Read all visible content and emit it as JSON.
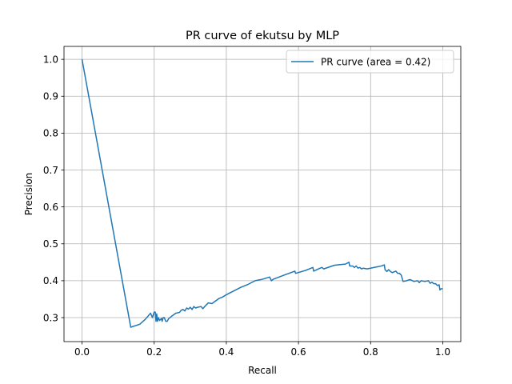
{
  "chart_data": {
    "type": "line",
    "title": "PR curve of ekutsu by MLP",
    "xlabel": "Recall",
    "ylabel": "Precision",
    "xlim": [
      -0.05,
      1.05
    ],
    "ylim": [
      0.235,
      1.035
    ],
    "xticks": [
      0.0,
      0.2,
      0.4,
      0.6,
      0.8,
      1.0
    ],
    "xtick_labels": [
      "0.0",
      "0.2",
      "0.4",
      "0.6",
      "0.8",
      "1.0"
    ],
    "yticks": [
      0.3,
      0.4,
      0.5,
      0.6,
      0.7,
      0.8,
      0.9,
      1.0
    ],
    "ytick_labels": [
      "0.3",
      "0.4",
      "0.5",
      "0.6",
      "0.7",
      "0.8",
      "0.9",
      "1.0"
    ],
    "grid": true,
    "legend_position": "top-right",
    "series": [
      {
        "name": "PR curve (area = 0.42)",
        "color": "#1f77b4",
        "x": [
          0.0,
          0.135,
          0.16,
          0.175,
          0.19,
          0.195,
          0.2,
          0.203,
          0.205,
          0.207,
          0.209,
          0.212,
          0.215,
          0.22,
          0.222,
          0.225,
          0.228,
          0.232,
          0.236,
          0.24,
          0.25,
          0.26,
          0.27,
          0.275,
          0.28,
          0.285,
          0.29,
          0.295,
          0.3,
          0.305,
          0.31,
          0.315,
          0.32,
          0.33,
          0.335,
          0.34,
          0.35,
          0.36,
          0.37,
          0.38,
          0.39,
          0.4,
          0.42,
          0.44,
          0.46,
          0.48,
          0.5,
          0.52,
          0.525,
          0.53,
          0.56,
          0.59,
          0.592,
          0.62,
          0.64,
          0.642,
          0.66,
          0.665,
          0.67,
          0.7,
          0.73,
          0.74,
          0.742,
          0.75,
          0.755,
          0.76,
          0.765,
          0.77,
          0.775,
          0.78,
          0.79,
          0.8,
          0.81,
          0.82,
          0.83,
          0.838,
          0.84,
          0.845,
          0.85,
          0.855,
          0.86,
          0.87,
          0.875,
          0.88,
          0.885,
          0.89,
          0.9,
          0.905,
          0.91,
          0.92,
          0.93,
          0.935,
          0.94,
          0.95,
          0.96,
          0.965,
          0.97,
          0.975,
          0.98,
          0.985,
          0.99,
          0.992,
          0.995,
          1.0
        ],
        "y": [
          1.0,
          0.274,
          0.282,
          0.295,
          0.312,
          0.3,
          0.315,
          0.315,
          0.29,
          0.31,
          0.29,
          0.3,
          0.292,
          0.298,
          0.29,
          0.3,
          0.3,
          0.29,
          0.29,
          0.297,
          0.305,
          0.312,
          0.314,
          0.32,
          0.322,
          0.318,
          0.326,
          0.323,
          0.328,
          0.322,
          0.33,
          0.326,
          0.328,
          0.33,
          0.324,
          0.33,
          0.34,
          0.338,
          0.345,
          0.352,
          0.356,
          0.362,
          0.372,
          0.382,
          0.39,
          0.4,
          0.404,
          0.41,
          0.4,
          0.404,
          0.415,
          0.426,
          0.42,
          0.428,
          0.436,
          0.426,
          0.434,
          0.436,
          0.432,
          0.442,
          0.445,
          0.45,
          0.44,
          0.44,
          0.436,
          0.44,
          0.434,
          0.436,
          0.432,
          0.434,
          0.432,
          0.434,
          0.436,
          0.438,
          0.44,
          0.443,
          0.43,
          0.425,
          0.43,
          0.425,
          0.422,
          0.426,
          0.42,
          0.42,
          0.415,
          0.398,
          0.4,
          0.402,
          0.403,
          0.398,
          0.4,
          0.395,
          0.4,
          0.398,
          0.4,
          0.393,
          0.396,
          0.392,
          0.392,
          0.387,
          0.389,
          0.375,
          0.378,
          0.378
        ]
      }
    ]
  }
}
